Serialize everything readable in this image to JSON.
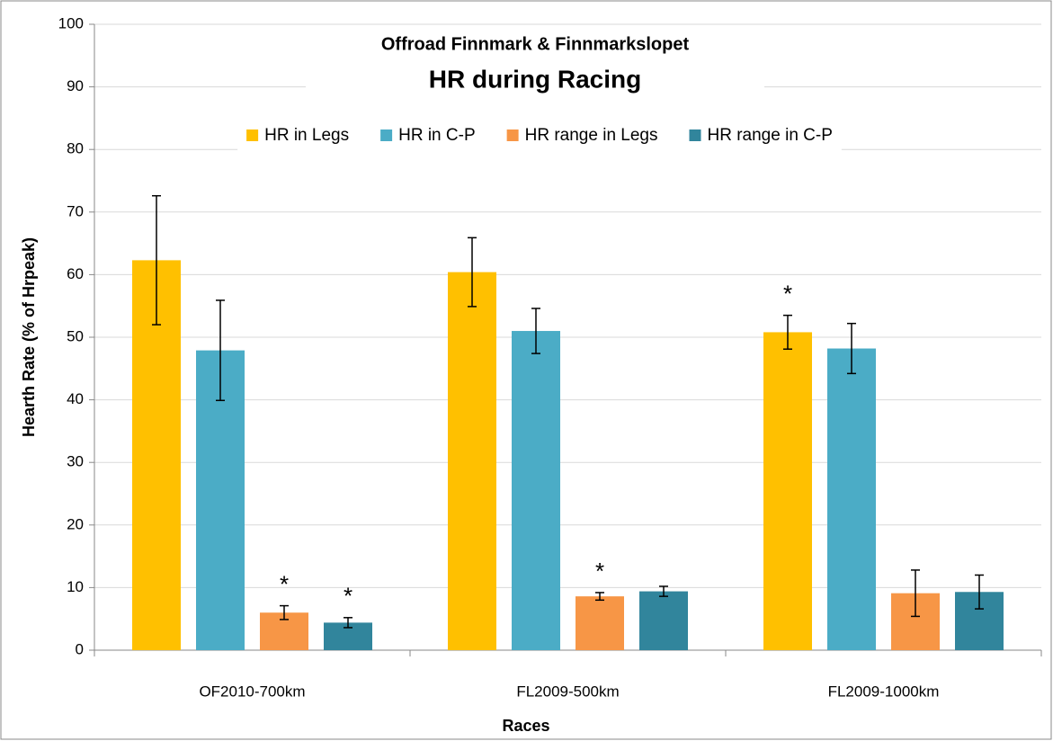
{
  "chart_data": {
    "type": "bar",
    "title": "Offroad Finnmark & Finnmarkslopet",
    "subtitle": "HR during Racing",
    "x_label": "Races",
    "y_label": "Hearth Rate (% of Hrpeak)",
    "categories": [
      "OF2010-700km",
      "FL2009-500km",
      "FL2009-1000km"
    ],
    "series": [
      {
        "name": "HR in Legs",
        "color": "#FFC000",
        "values": [
          62.3,
          60.4,
          50.8
        ],
        "errors": [
          10.3,
          5.5,
          2.7
        ],
        "annotations": [
          null,
          null,
          "*"
        ]
      },
      {
        "name": "HR in C-P",
        "color": "#4BACC6",
        "values": [
          47.9,
          51.0,
          48.2
        ],
        "errors": [
          8.0,
          3.6,
          4.0
        ],
        "annotations": [
          null,
          null,
          null
        ]
      },
      {
        "name": "HR range in Legs",
        "color": "#F79646",
        "values": [
          6.0,
          8.6,
          9.1
        ],
        "errors": [
          1.1,
          0.6,
          3.7
        ],
        "annotations": [
          "*",
          "*",
          null
        ]
      },
      {
        "name": "HR range in C-P",
        "color": "#31859C",
        "values": [
          4.4,
          9.4,
          9.3
        ],
        "errors": [
          0.8,
          0.8,
          2.7
        ],
        "annotations": [
          "*",
          null,
          null
        ]
      }
    ],
    "ylim": [
      0,
      100
    ],
    "yticks": [
      0,
      10,
      20,
      30,
      40,
      50,
      60,
      70,
      80,
      90,
      100
    ],
    "grid": true,
    "legend": "top"
  }
}
